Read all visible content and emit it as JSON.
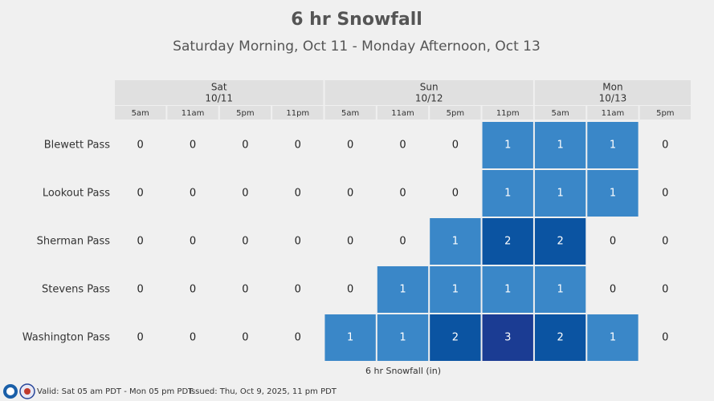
{
  "chart_data": {
    "type": "heatmap",
    "title": "6 hr Snowfall",
    "subtitle": "Saturday Morning, Oct 11 - Monday Afternoon, Oct 13",
    "days": [
      {
        "name": "Sat",
        "date": "10/11",
        "times": [
          "5am",
          "11am",
          "5pm",
          "11pm"
        ]
      },
      {
        "name": "Sun",
        "date": "10/12",
        "times": [
          "5am",
          "11am",
          "5pm",
          "11pm"
        ]
      },
      {
        "name": "Mon",
        "date": "10/13",
        "times": [
          "5am",
          "11am",
          "5pm"
        ]
      }
    ],
    "rows": [
      {
        "name": "Blewett Pass",
        "values": [
          0,
          0,
          0,
          0,
          0,
          0,
          0,
          1,
          1,
          1,
          0
        ]
      },
      {
        "name": "Lookout Pass",
        "values": [
          0,
          0,
          0,
          0,
          0,
          0,
          0,
          1,
          1,
          1,
          0
        ]
      },
      {
        "name": "Sherman Pass",
        "values": [
          0,
          0,
          0,
          0,
          0,
          0,
          1,
          2,
          2,
          0,
          0
        ]
      },
      {
        "name": "Stevens Pass",
        "values": [
          0,
          0,
          0,
          0,
          0,
          1,
          1,
          1,
          1,
          0,
          0
        ]
      },
      {
        "name": "Washington Pass",
        "values": [
          0,
          0,
          0,
          0,
          1,
          1,
          2,
          3,
          2,
          1,
          0
        ]
      }
    ],
    "scale": [
      {
        "value": 1,
        "color": "#3a87c8"
      },
      {
        "value": 2,
        "color": "#0b54a2"
      },
      {
        "value": 3,
        "color": "#1b3c93"
      }
    ],
    "legend_label": "6 hr Snowfall (in)",
    "valid": "Valid: Sat 05 am PDT - Mon 05 pm PDT",
    "issued": "Issued: Thu, Oct 9, 2025, 11 pm PDT"
  }
}
